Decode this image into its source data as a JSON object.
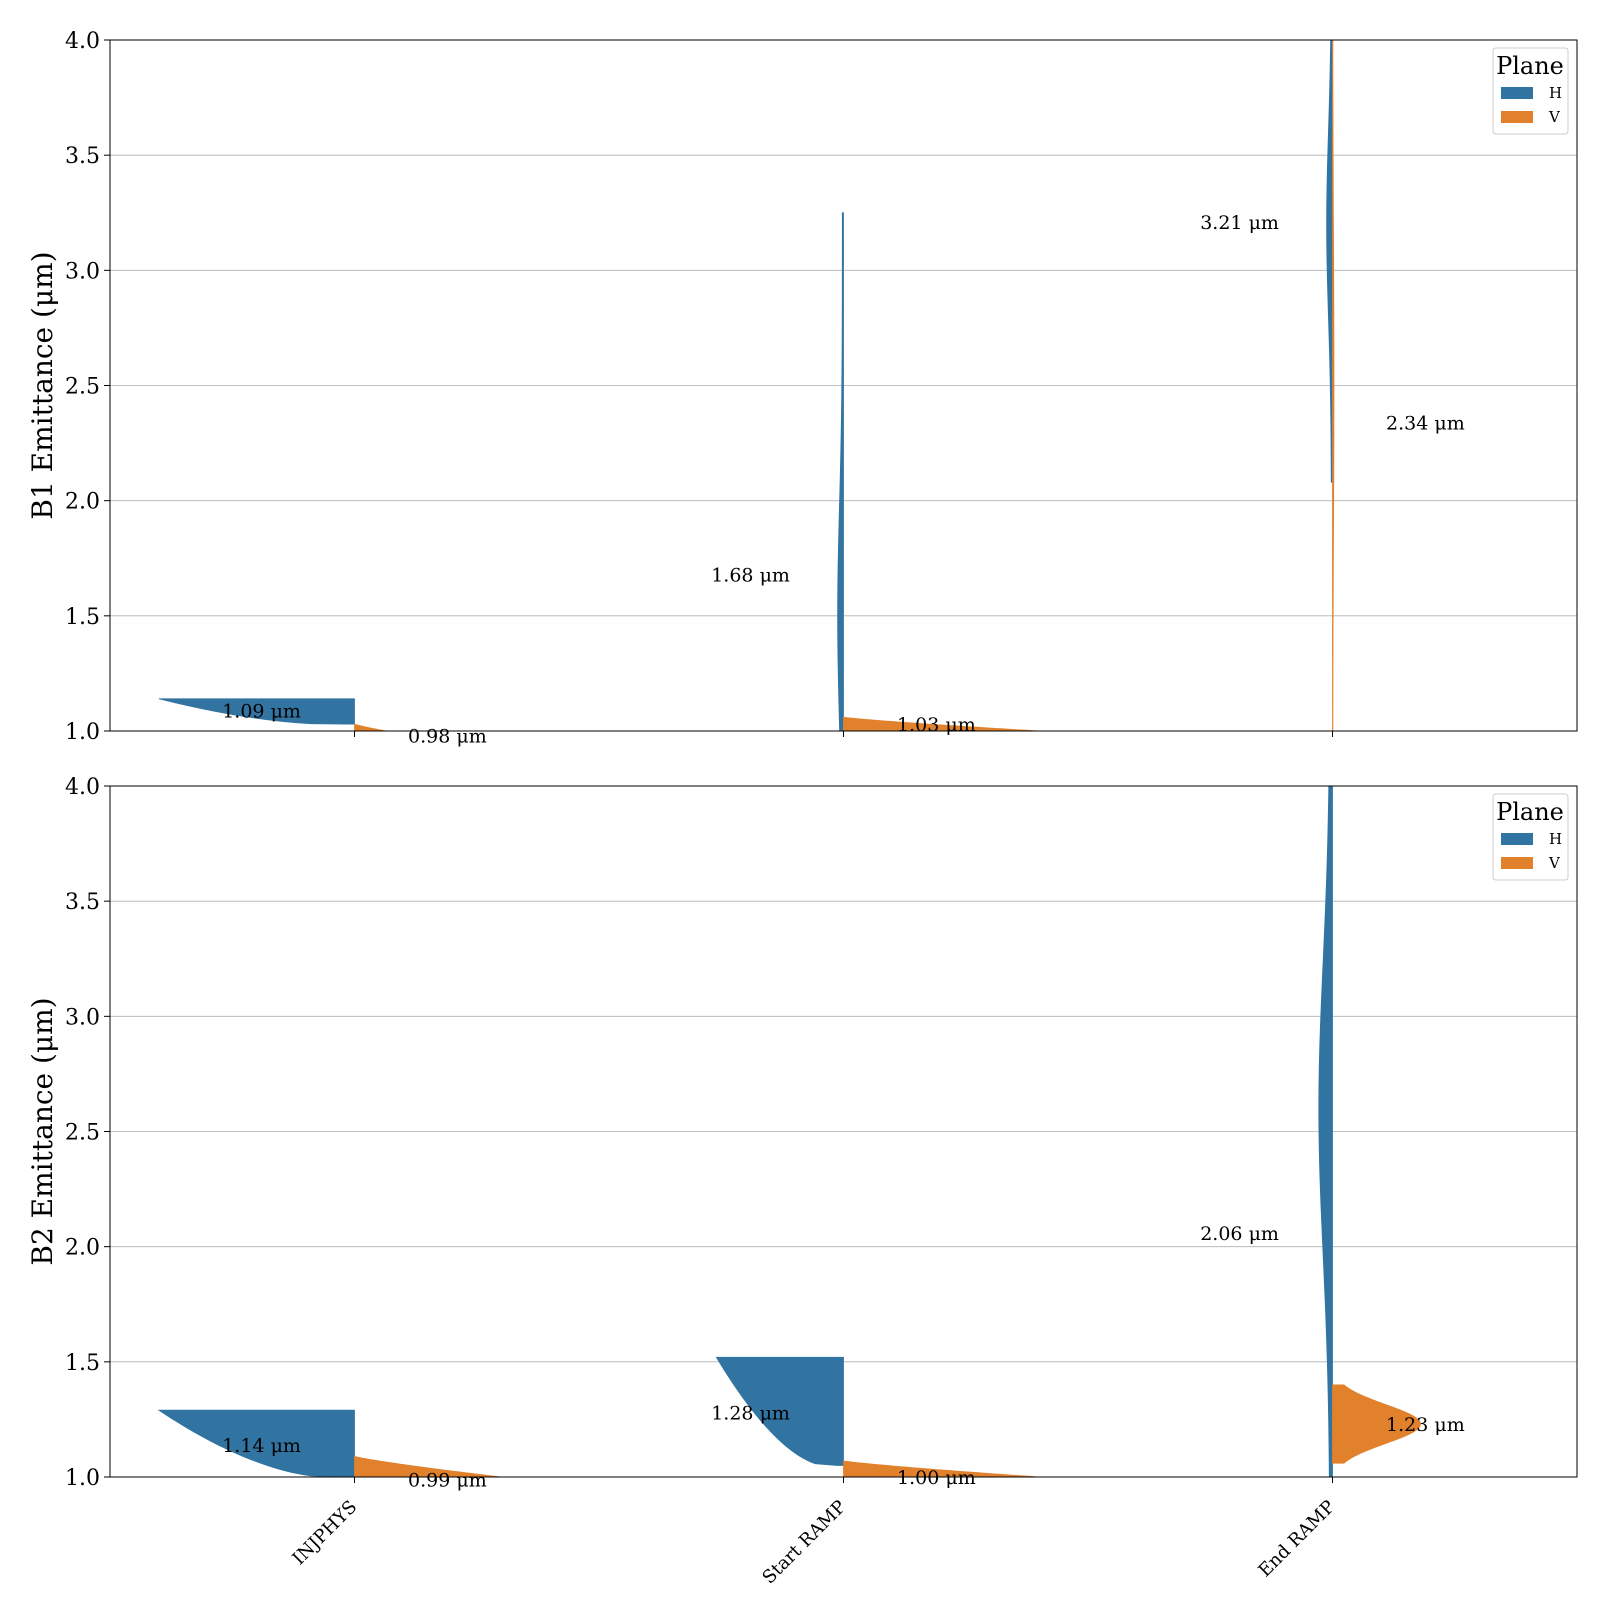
{
  "chart_data": [
    {
      "type": "violin",
      "split": true,
      "ylabel": "B1 Emittance (μm)",
      "ylim": [
        1.0,
        4.0
      ],
      "yticks": [
        "1.0",
        "1.5",
        "2.0",
        "2.5",
        "3.0",
        "3.5",
        "4.0"
      ],
      "grid": true,
      "categories": [
        "INJPHYS",
        "Start RAMP",
        "End RAMP"
      ],
      "legend": {
        "title": "Plane",
        "position": "top-right",
        "entries": [
          "H",
          "V"
        ]
      },
      "series": [
        {
          "name": "H",
          "color": "#3274a1",
          "profiles": [
            {
              "min": 1.03,
              "max": 1.14,
              "peak": 1.09,
              "width": 0.4,
              "shape": "left"
            },
            {
              "min": 1.0,
              "max": 3.25,
              "peak": 1.5,
              "width": 0.012,
              "shape": "thin"
            },
            {
              "min": 2.08,
              "max": 4.0,
              "peak": 3.2,
              "width": 0.012,
              "shape": "thin"
            }
          ],
          "annotations": [
            "1.09 μm",
            "1.68 μm",
            "3.21 μm"
          ],
          "annotation_y": [
            1.09,
            1.68,
            3.21
          ]
        },
        {
          "name": "V",
          "color": "#e1812c",
          "profiles": [
            {
              "min": 0.98,
              "max": 1.03,
              "peak": 1.02,
              "width": 0.12,
              "shape": "right"
            },
            {
              "min": 1.0,
              "max": 1.06,
              "peak": 1.03,
              "width": 0.4,
              "shape": "right"
            },
            {
              "min": 1.0,
              "max": 4.0,
              "peak": 2.5,
              "width": 0.003,
              "shape": "thin"
            }
          ],
          "annotations": [
            "0.98 μm",
            "1.03 μm",
            "2.34 μm"
          ],
          "annotation_y": [
            0.98,
            1.03,
            2.34
          ]
        }
      ]
    },
    {
      "type": "violin",
      "split": true,
      "ylabel": "B2 Emittance (μm)",
      "ylim": [
        1.0,
        4.0
      ],
      "yticks": [
        "1.0",
        "1.5",
        "2.0",
        "2.5",
        "3.0",
        "3.5",
        "4.0"
      ],
      "grid": true,
      "categories": [
        "INJPHYS",
        "Start RAMP",
        "End RAMP"
      ],
      "legend": {
        "title": "Plane",
        "position": "top-right",
        "entries": [
          "H",
          "V"
        ]
      },
      "series": [
        {
          "name": "H",
          "color": "#3274a1",
          "profiles": [
            {
              "min": 1.0,
              "max": 1.29,
              "peak": 1.14,
              "width": 0.4,
              "shape": "left"
            },
            {
              "min": 1.05,
              "max": 1.52,
              "peak": 1.28,
              "width": 0.26,
              "shape": "left"
            },
            {
              "min": 1.0,
              "max": 4.0,
              "peak": 2.6,
              "width": 0.028,
              "shape": "thin"
            }
          ],
          "annotations": [
            "1.14 μm",
            "1.28 μm",
            "2.06 μm"
          ],
          "annotation_y": [
            1.14,
            1.28,
            2.06
          ]
        },
        {
          "name": "V",
          "color": "#e1812c",
          "profiles": [
            {
              "min": 1.0,
              "max": 1.09,
              "peak": 1.05,
              "width": 0.3,
              "shape": "right"
            },
            {
              "min": 1.0,
              "max": 1.07,
              "peak": 1.03,
              "width": 0.4,
              "shape": "right"
            },
            {
              "min": 1.06,
              "max": 1.4,
              "peak": 1.23,
              "width": 0.18,
              "shape": "bell"
            }
          ],
          "annotations": [
            "0.99 μm",
            "1.00 μm",
            "1.23 μm"
          ],
          "annotation_y": [
            0.99,
            1.0,
            1.23
          ]
        }
      ]
    }
  ]
}
